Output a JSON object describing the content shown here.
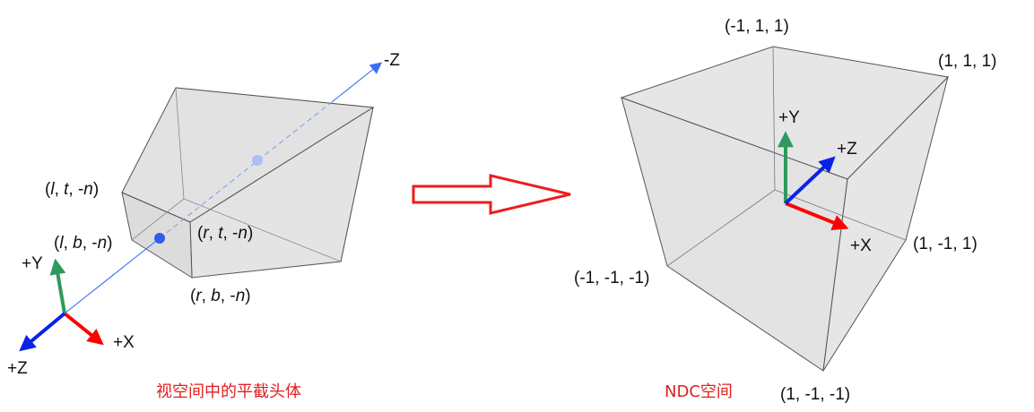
{
  "colors": {
    "axis_x": "#ff0000",
    "axis_y": "#2e9a5e",
    "axis_z": "#0a22e8",
    "view_ray": "#3b6ff0",
    "caption": "#e02020",
    "solid_fill": "#e6e6e6",
    "edge": "#555555"
  },
  "frustum": {
    "caption": "视空间中的平截头体",
    "neg_z_label": "-Z",
    "axes": {
      "x": "+X",
      "y": "+Y",
      "z": "+Z"
    },
    "corners": {
      "lt": {
        "l": "l",
        "sep1": ", ",
        "t": "t",
        "sep2": ", -",
        "n": "n"
      },
      "lb": {
        "l": "l",
        "sep1": ", ",
        "b": "b",
        "sep2": ", -",
        "n": "n"
      },
      "rt": {
        "r": "r",
        "sep1": ", ",
        "t": "t",
        "sep2": ", -",
        "n": "n"
      },
      "rb": {
        "r": "r",
        "sep1": ", ",
        "b": "b",
        "sep2": ", -",
        "n": "n"
      }
    }
  },
  "transform_arrow": {
    "icon": "right-arrow-icon"
  },
  "ndc": {
    "caption": "NDC空间",
    "axes": {
      "x": "+X",
      "y": "+Y",
      "z": "+Z"
    },
    "corners": {
      "top_back": "(-1, 1, 1)",
      "top_right": "(1, 1, 1)",
      "right_mid": "(1, -1, 1)",
      "left_bottom": "(-1, -1, -1)",
      "bottom_front": "(1, -1, -1)"
    }
  }
}
